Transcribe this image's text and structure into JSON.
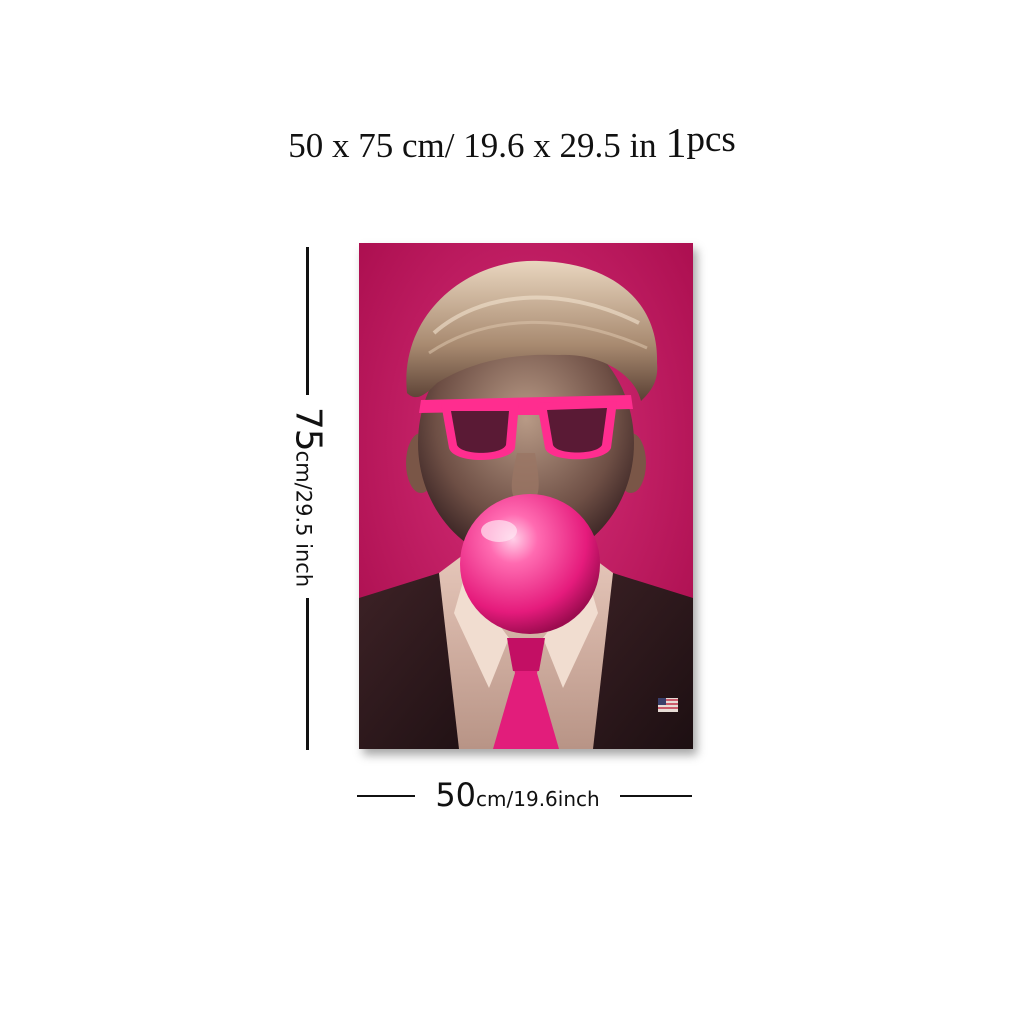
{
  "headline": {
    "dims_cm": "50 x 75 cm/",
    "dims_in": "19.6  x  29.5 in",
    "qty_number": "1",
    "qty_unit": "pcs"
  },
  "height_label": {
    "value": "75",
    "unit": "cm/29.5 inch"
  },
  "width_label": {
    "value": "50",
    "unit": "cm/19.6inch"
  },
  "poster": {
    "background_color": "#c4145e",
    "accent_color": "#ff2d8f",
    "subject": "portrait with pink sunglasses blowing a bubble gum bubble"
  }
}
